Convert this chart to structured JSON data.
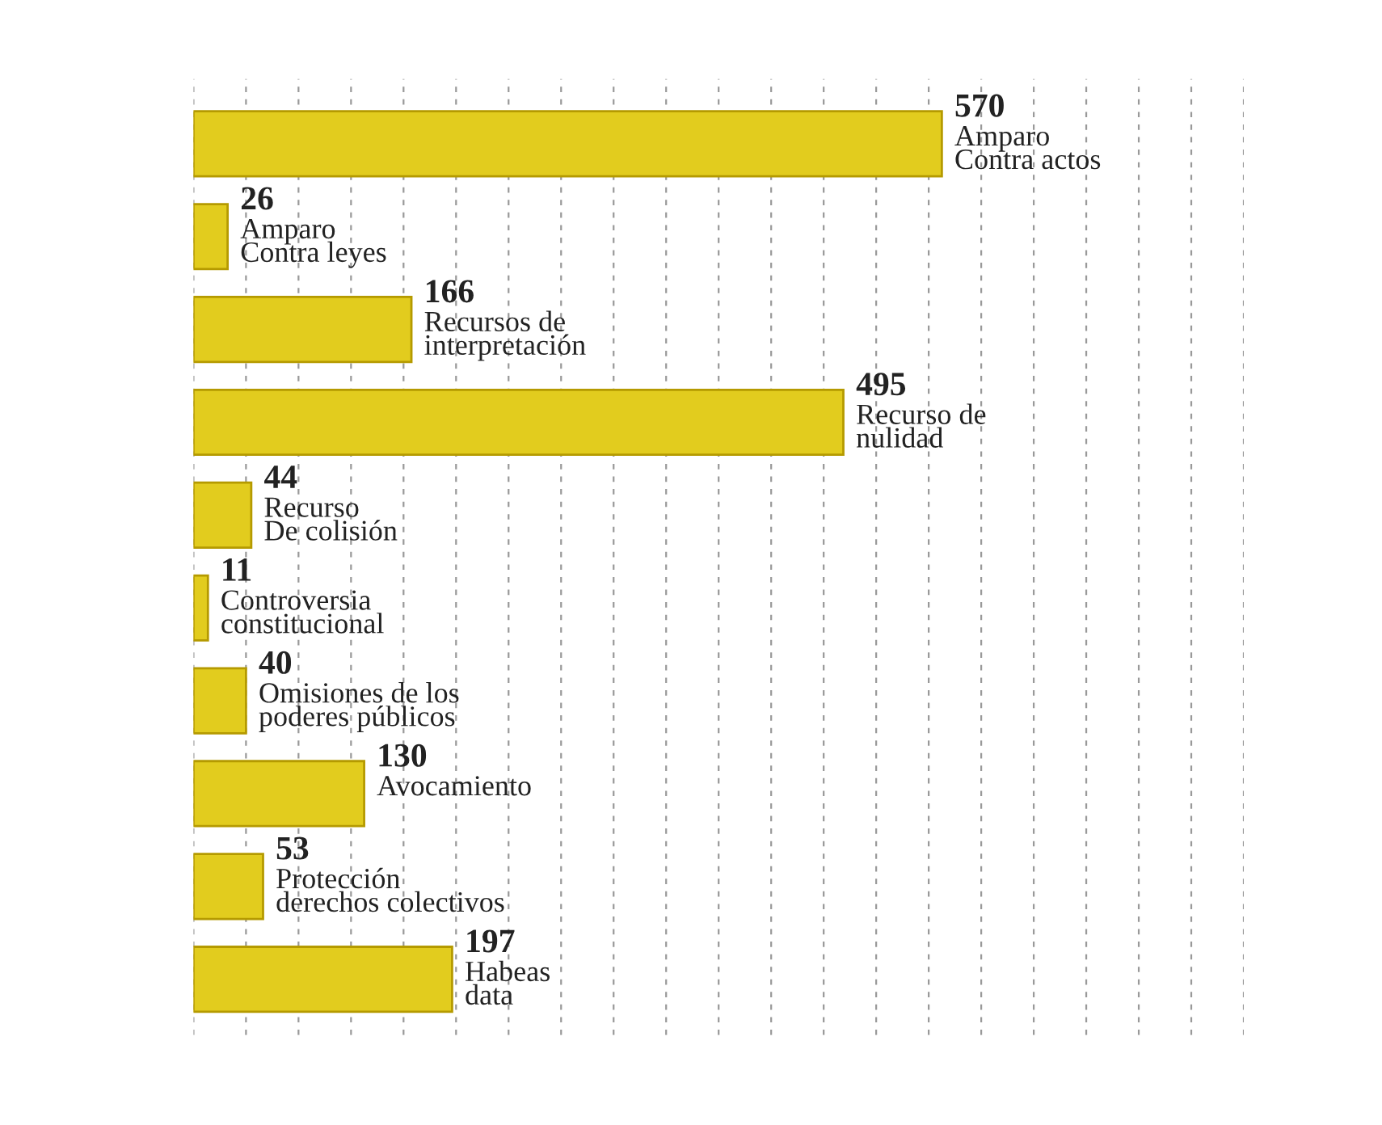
{
  "chart_data": {
    "type": "bar",
    "orientation": "horizontal",
    "categories": [
      "Amparo\nContra actos",
      "Amparo\nContra leyes",
      "Recursos de\ninterpretación",
      "Recurso de\nnulidad",
      "Recurso\nDe colisión",
      "Controversia\nconstitucional",
      "Omisiones de los\npoderes públicos",
      "Avocamiento",
      "Protección\nderechos colectivos",
      "Habeas\ndata"
    ],
    "values": [
      570,
      26,
      166,
      495,
      44,
      11,
      40,
      130,
      53,
      197
    ],
    "color": "#e2cc1e",
    "data_labels": true,
    "grid": "x",
    "xlim": [
      0,
      800
    ],
    "xticks": [
      {
        "value": 0,
        "label": null
      },
      {
        "value": 40,
        "label": null
      },
      {
        "value": 80,
        "label": null
      },
      {
        "value": 120,
        "label": null
      },
      {
        "value": 160,
        "label": null
      },
      {
        "value": 200,
        "label": null
      },
      {
        "value": 240,
        "label": null
      },
      {
        "value": 280,
        "label": null
      },
      {
        "value": 320,
        "label": null
      },
      {
        "value": 360,
        "label": null
      },
      {
        "value": 400,
        "label": null
      },
      {
        "value": 440,
        "label": null
      },
      {
        "value": 480,
        "label": null
      },
      {
        "value": 520,
        "label": null
      },
      {
        "value": 560,
        "label": null
      },
      {
        "value": 600,
        "label": null
      },
      {
        "value": 640,
        "label": null
      },
      {
        "value": 680,
        "label": null
      },
      {
        "value": 720,
        "label": null
      },
      {
        "value": 760,
        "label": null
      },
      {
        "value": 800,
        "label": null
      }
    ]
  }
}
